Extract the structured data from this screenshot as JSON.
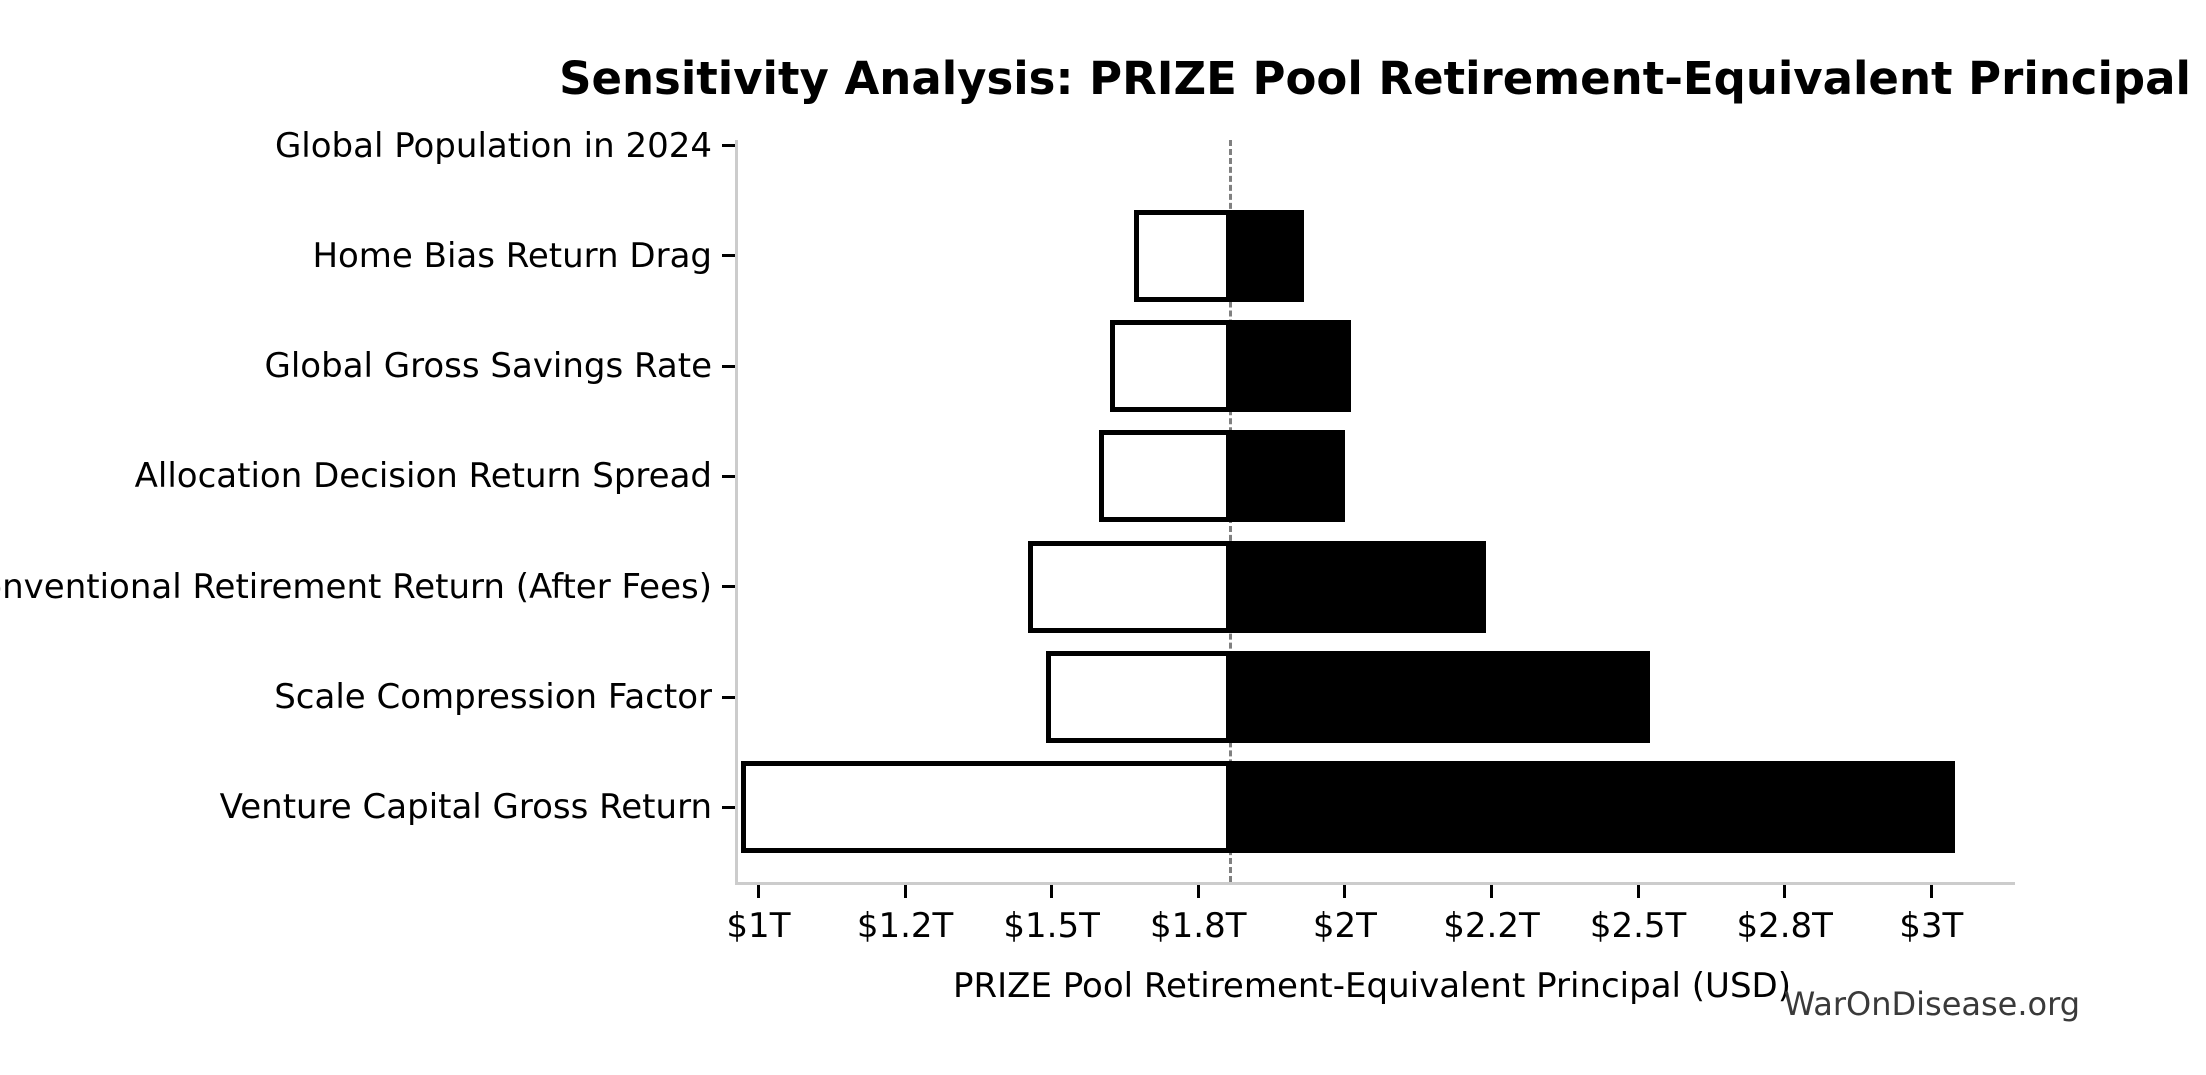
{
  "chart_data": {
    "type": "bar",
    "subtype": "tornado-sensitivity",
    "title": "Sensitivity Analysis: PRIZE Pool Retirement-Equivalent Principal",
    "xlabel": "PRIZE Pool Retirement-Equivalent Principal (USD)",
    "watermark": "WarOnDisease.org",
    "unit": "trillion USD",
    "baseline": 1.805,
    "x_axis": {
      "min": 0.96,
      "max": 3.141,
      "grid": false,
      "ticks": [
        {
          "value": 1.0,
          "label": "$1T"
        },
        {
          "value": 1.25,
          "label": "$1.2T"
        },
        {
          "value": 1.5,
          "label": "$1.5T"
        },
        {
          "value": 1.75,
          "label": "$1.8T"
        },
        {
          "value": 2.0,
          "label": "$2T"
        },
        {
          "value": 2.25,
          "label": "$2.2T"
        },
        {
          "value": 2.5,
          "label": "$2.5T"
        },
        {
          "value": 2.75,
          "label": "$2.8T"
        },
        {
          "value": 3.0,
          "label": "$3T"
        }
      ]
    },
    "rows": [
      {
        "label": "Global Population in 2024",
        "low": 1.805,
        "high": 1.805
      },
      {
        "label": "Home Bias Return Drag",
        "low": 1.64,
        "high": 1.93
      },
      {
        "label": "Global Gross Savings Rate",
        "low": 1.6,
        "high": 2.01
      },
      {
        "label": "Allocation Decision Return Spread",
        "low": 1.58,
        "high": 2.0
      },
      {
        "label": "Conventional Retirement Return (After Fees)",
        "low": 1.46,
        "high": 2.24
      },
      {
        "label": "Scale Compression Factor",
        "low": 1.49,
        "high": 2.52
      },
      {
        "label": "Venture Capital Gross Return",
        "low": 0.97,
        "high": 3.04
      }
    ],
    "colors": {
      "low_fill": "#ffffff",
      "high_fill": "#000000",
      "bar_edge": "#000000",
      "baseline_line": "#808080",
      "spine": "#cccccc",
      "text": "#000000",
      "watermark_text": "#3a3a3a"
    }
  }
}
